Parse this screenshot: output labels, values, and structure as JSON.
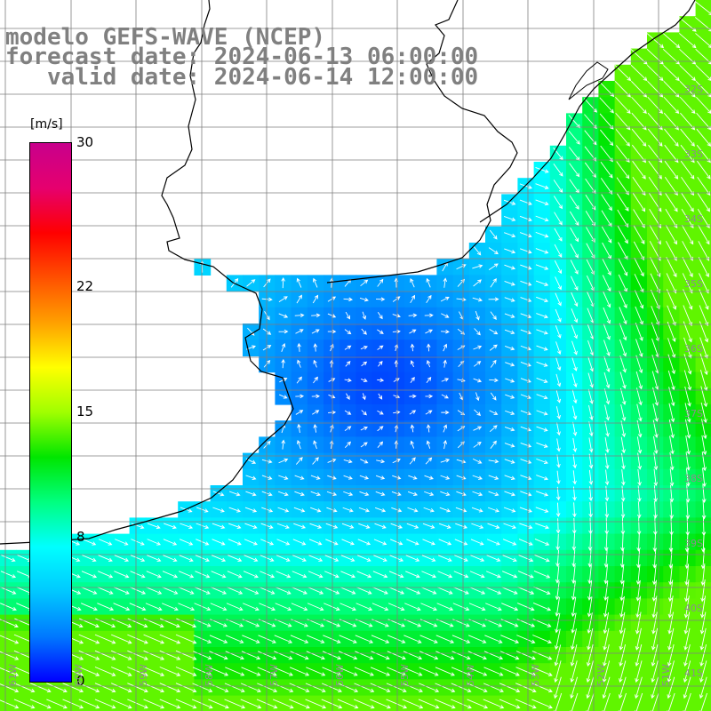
{
  "title": {
    "model": "modelo GEFS-WAVE (NCEP)",
    "forecast": "forecast date: 2024-06-13 06:00:00",
    "valid": "   valid date: 2024-06-14 12:00:00"
  },
  "colorbar": {
    "unit": "[m/s]",
    "ticks": [
      {
        "label": "30",
        "value": 30
      },
      {
        "label": "22",
        "value": 22
      },
      {
        "label": "15",
        "value": 15
      },
      {
        "label": "8",
        "value": 8
      },
      {
        "label": "0",
        "value": 0
      }
    ],
    "colors": [
      "#0000ff",
      "#0078ff",
      "#00c8ff",
      "#00ffff",
      "#00ff80",
      "#00e600",
      "#a0ff00",
      "#ffff00",
      "#ffa000",
      "#ff5000",
      "#ff0000",
      "#e6006e",
      "#c8008c"
    ]
  },
  "map": {
    "background_color": "#ffffff",
    "land_color": "#ffffff",
    "grid_color": "#7f7f7f",
    "coast_color": "#000000",
    "arrow_color": "#ffffff",
    "lat_labels": [
      "32S",
      "33S",
      "34S",
      "35S",
      "36S",
      "37S",
      "38S",
      "39S",
      "40S",
      "41S"
    ],
    "lon_labels": [
      "61W",
      "60W",
      "59W",
      "58W",
      "57W",
      "56W",
      "55W",
      "54W",
      "53W",
      "52W",
      "51W"
    ],
    "lat_range": [
      31.1,
      41.3
    ],
    "lon_range": [
      61.1,
      50.4
    ]
  }
}
